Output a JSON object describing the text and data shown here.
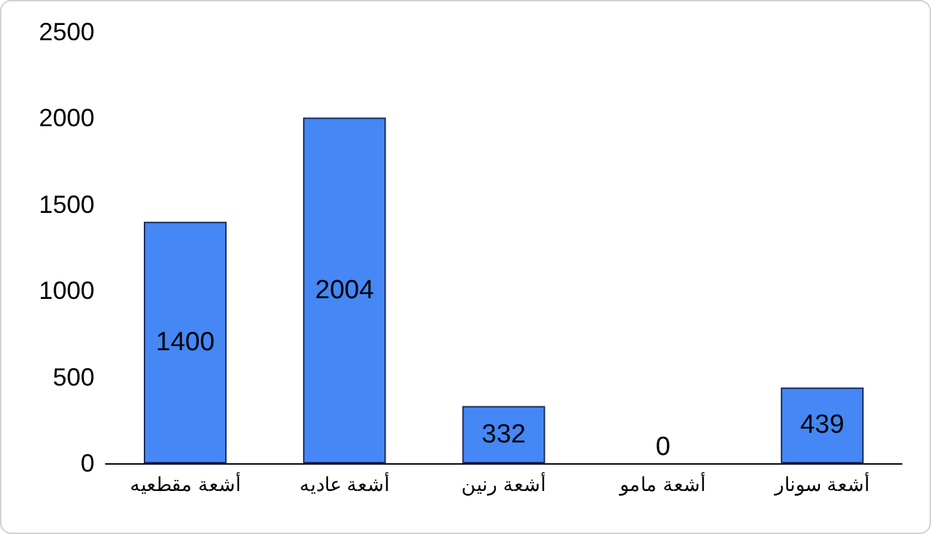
{
  "chart_data": {
    "type": "bar",
    "categories": [
      "أشعة مقطعيه",
      "أشعة عاديه",
      "أشعة رنين",
      "أشعة مامو",
      "أشعة سونار"
    ],
    "values": [
      1400,
      2004,
      332,
      0,
      439
    ],
    "color": "#4487f5",
    "ylim": [
      0,
      2500
    ],
    "yticks": [
      0,
      500,
      1000,
      1500,
      2000,
      2500
    ],
    "grid": false,
    "data_labels": true
  }
}
